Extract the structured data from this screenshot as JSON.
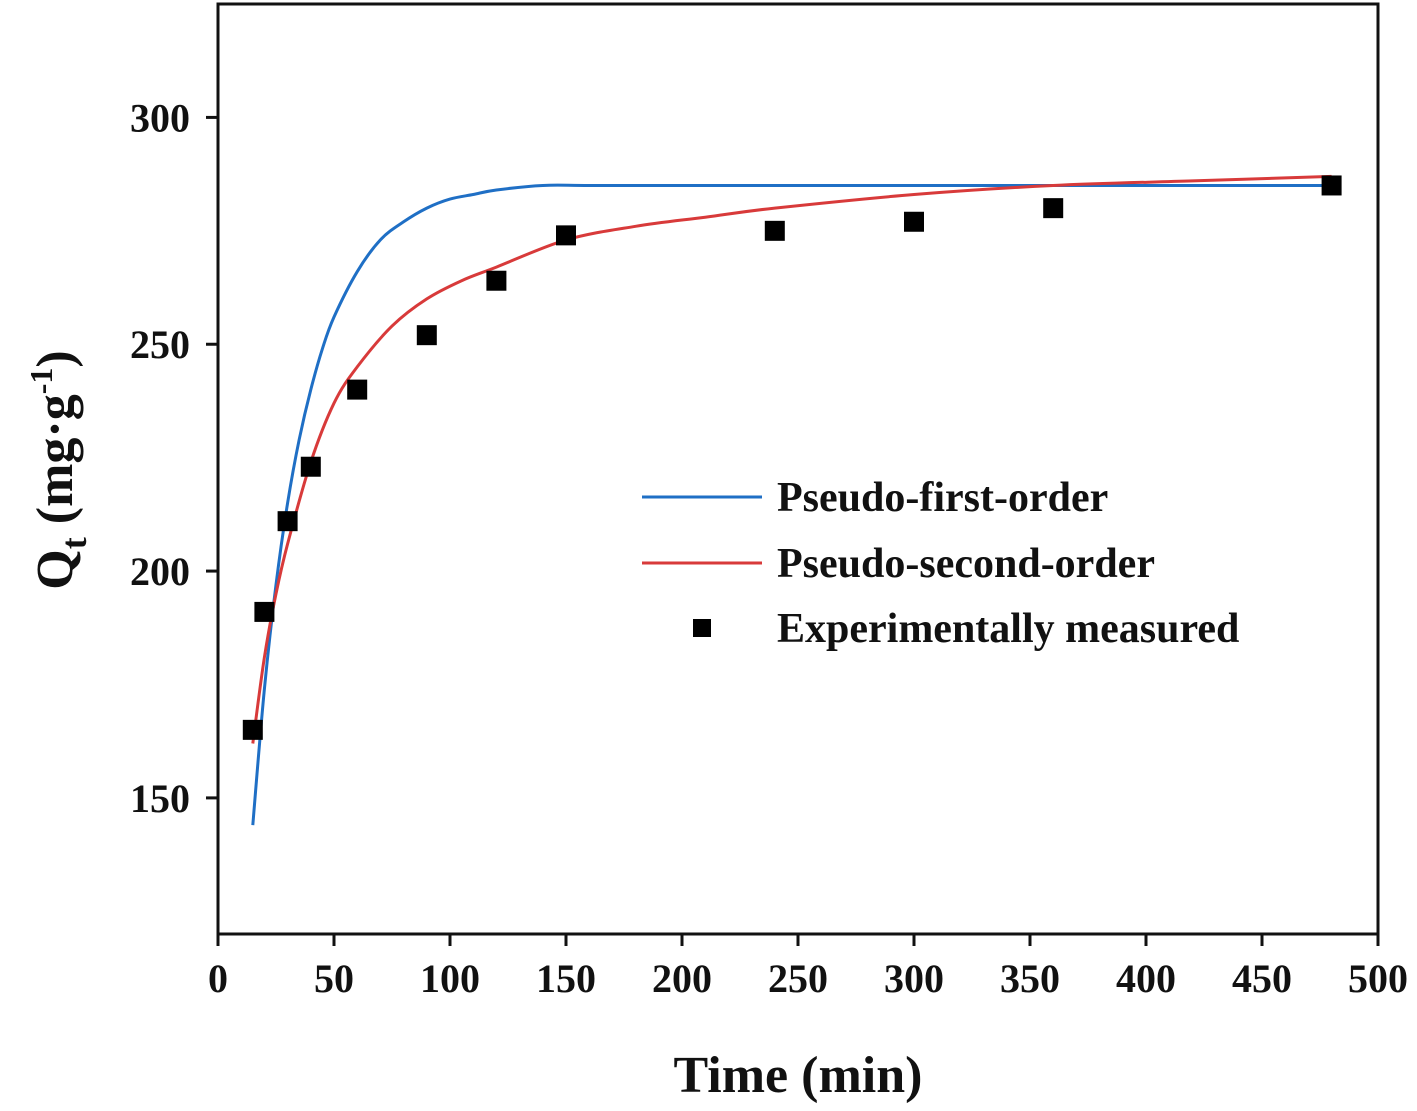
{
  "chart_data": {
    "type": "line",
    "title": "",
    "xlabel": "Time (min)",
    "ylabel": {
      "main": "Q",
      "sub": "t",
      "unit_open": " (mg·g",
      "sup": "-1",
      "unit_close": ")"
    },
    "xlim": [
      0,
      500
    ],
    "ylim": [
      120,
      325
    ],
    "xticks": [
      0,
      50,
      100,
      150,
      200,
      250,
      300,
      350,
      400,
      450,
      500
    ],
    "yticks": [
      150,
      200,
      250,
      300
    ],
    "grid": false,
    "legend_position": "center-right",
    "series": [
      {
        "name": "Pseudo-first-order",
        "kind": "line",
        "color": "#1f6fc5",
        "x": [
          15,
          20,
          25,
          30,
          35,
          40,
          45,
          50,
          60,
          70,
          80,
          90,
          100,
          110,
          120,
          140,
          160,
          200,
          300,
          400,
          480
        ],
        "y": [
          144,
          174,
          197,
          215,
          229,
          240,
          249,
          256,
          266,
          273,
          277,
          280,
          282,
          283,
          284,
          285,
          285,
          285,
          285,
          285,
          285
        ]
      },
      {
        "name": "Pseudo-second-order",
        "kind": "line",
        "color": "#d83a3a",
        "x": [
          15,
          20,
          25,
          30,
          40,
          50,
          60,
          75,
          90,
          105,
          120,
          150,
          180,
          210,
          240,
          300,
          360,
          420,
          480
        ],
        "y": [
          162,
          181,
          195,
          206,
          224,
          237,
          245,
          254,
          260,
          264,
          267,
          273,
          276,
          278,
          280,
          283,
          285,
          286,
          287
        ]
      },
      {
        "name": "Experimentally measured",
        "kind": "scatter",
        "color": "#000000",
        "x": [
          15,
          20,
          30,
          40,
          60,
          90,
          120,
          150,
          240,
          300,
          360,
          480
        ],
        "y": [
          165,
          191,
          211,
          223,
          240,
          252,
          264,
          274,
          275,
          277,
          280,
          285
        ]
      }
    ]
  }
}
